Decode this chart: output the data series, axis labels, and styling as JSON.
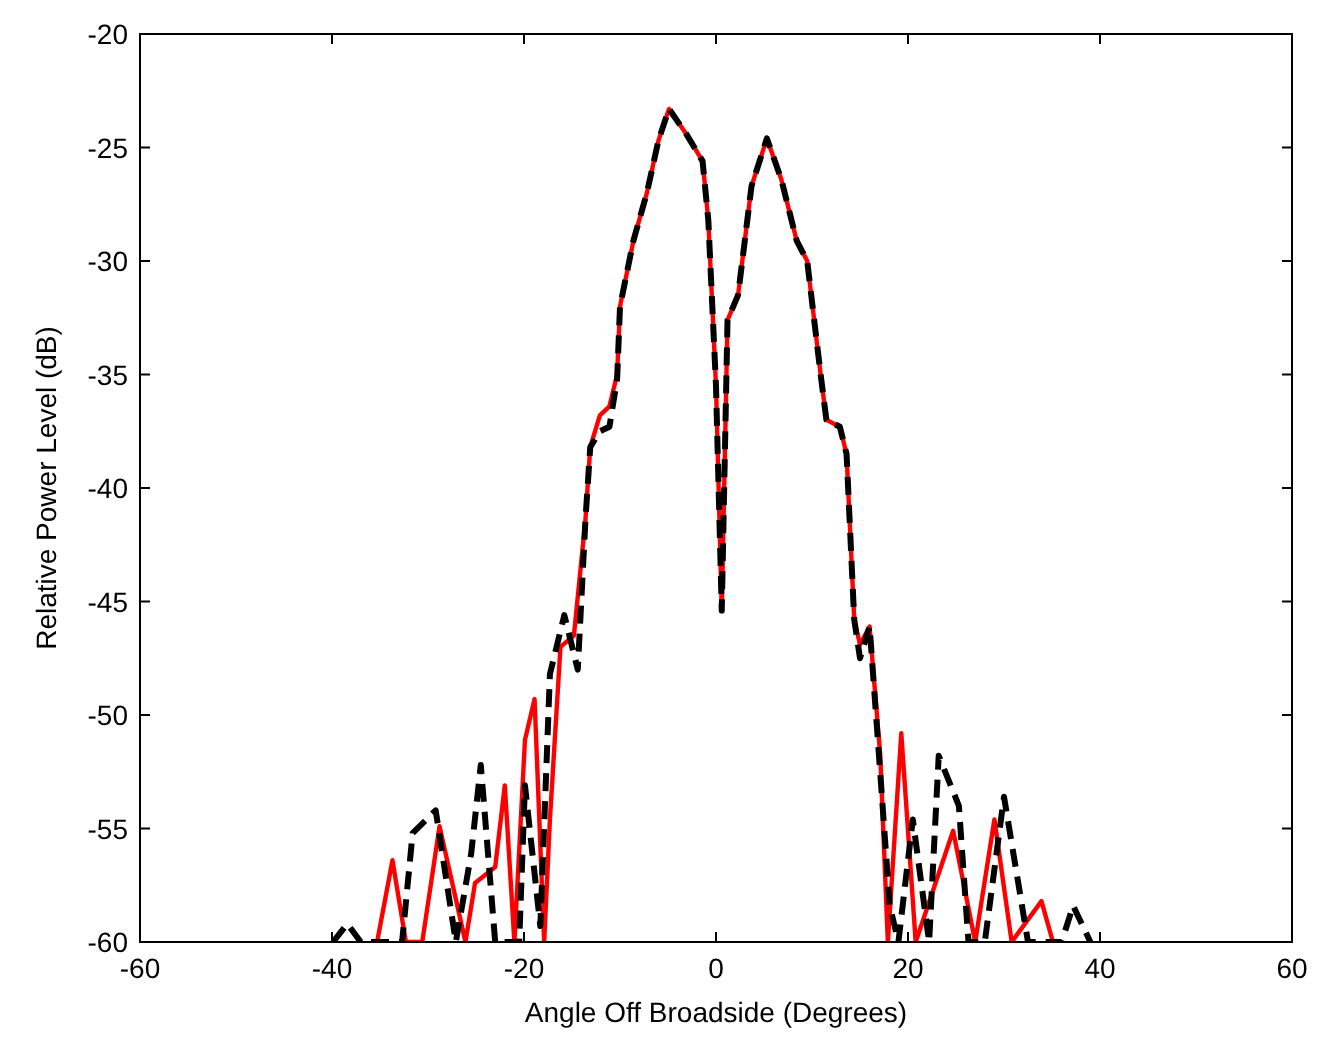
{
  "chart_data": {
    "type": "line",
    "xlabel": "Angle Off Broadside (Degrees)",
    "ylabel": "Relative Power Level (dB)",
    "xlim": [
      -60,
      60
    ],
    "ylim": [
      -60,
      -20
    ],
    "xticks": [
      -60,
      -40,
      -20,
      0,
      20,
      40,
      60
    ],
    "yticks": [
      -60,
      -55,
      -50,
      -45,
      -40,
      -35,
      -30,
      -25,
      -20
    ],
    "grid": false,
    "series": [
      {
        "color": "#ff0000",
        "line_style": "solid",
        "x": [
          -35.3,
          -33.7,
          -32.3,
          -30.6,
          -28.8,
          -26.1,
          -25.1,
          -23.0,
          -22.0,
          -21.0,
          -19.9,
          -18.9,
          -17.9,
          -17.3,
          -16.2,
          -14.8,
          -13.6,
          -13.1,
          -12.1,
          -11.1,
          -10.3,
          -10.0,
          -8.6,
          -7.2,
          -6.0,
          -4.9,
          -3.1,
          -1.4,
          -0.8,
          0,
          0.6,
          1.2,
          2.3,
          3.7,
          5.3,
          6.8,
          8.4,
          9.5,
          10.9,
          11.5,
          12.9,
          13.6,
          14.4,
          15.0,
          16.0,
          17.1,
          17.9,
          19.3,
          20.8,
          24.7,
          27.0,
          29.0,
          30.8,
          33.9,
          35.1
        ],
        "values": [
          -60,
          -56.4,
          -60,
          -60,
          -54.9,
          -60,
          -57.4,
          -56.7,
          -53.1,
          -60,
          -51.1,
          -49.3,
          -60,
          -54.6,
          -47.0,
          -46.5,
          -41.4,
          -38.2,
          -36.8,
          -36.4,
          -35.0,
          -32.0,
          -29.1,
          -27.0,
          -24.7,
          -23.3,
          -24.4,
          -25.6,
          -28.2,
          -35.5,
          -45.4,
          -32.6,
          -31.5,
          -26.7,
          -24.6,
          -26.4,
          -29.1,
          -30.0,
          -35.0,
          -37.0,
          -37.3,
          -38.5,
          -45.8,
          -46.9,
          -46.1,
          -51.7,
          -60,
          -50.8,
          -60,
          -55.1,
          -60,
          -54.6,
          -60,
          -58.2,
          -60
        ]
      },
      {
        "color": "#000000",
        "line_style": "dashed",
        "x": [
          -39.9,
          -38.4,
          -37.0,
          -32.7,
          -31.6,
          -29.2,
          -27.1,
          -25.5,
          -24.5,
          -23.0,
          -20.5,
          -19.9,
          -18.3,
          -17.3,
          -15.8,
          -14.4,
          -13.6,
          -13.1,
          -12.1,
          -11.1,
          -10.3,
          -10.0,
          -8.6,
          -7.2,
          -6.0,
          -4.9,
          -3.1,
          -1.4,
          -0.8,
          0,
          0.6,
          1.2,
          2.3,
          3.7,
          5.3,
          6.8,
          8.4,
          9.5,
          10.9,
          11.5,
          12.9,
          13.6,
          14.4,
          15.0,
          16.0,
          17.1,
          18.1,
          19.0,
          20.5,
          22.2,
          23.2,
          25.3,
          26.3,
          28.0,
          30.0,
          32.5,
          36.0,
          37.2,
          39.0
        ],
        "values": [
          -60,
          -59.2,
          -60,
          -60,
          -55.2,
          -54.2,
          -60,
          -56.1,
          -52.2,
          -60,
          -60,
          -53.1,
          -59.3,
          -48.2,
          -45.6,
          -48.0,
          -41.4,
          -38.2,
          -37.5,
          -37.3,
          -35.2,
          -32.0,
          -29.1,
          -27.0,
          -24.7,
          -23.3,
          -24.4,
          -25.6,
          -28.2,
          -35.5,
          -45.4,
          -32.6,
          -31.5,
          -26.7,
          -24.6,
          -26.4,
          -29.1,
          -30.0,
          -35.0,
          -37.0,
          -37.3,
          -38.5,
          -45.8,
          -47.5,
          -46.1,
          -52.5,
          -58.4,
          -60,
          -54.6,
          -60,
          -51.8,
          -54.0,
          -60,
          -60,
          -53.6,
          -60,
          -60,
          -58.4,
          -60
        ]
      }
    ]
  }
}
